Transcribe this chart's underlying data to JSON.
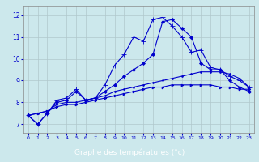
{
  "xlabel": "Graphe des températures (°c)",
  "bg_color": "#cce8ec",
  "grid_color": "#b0c8cc",
  "line_color": "#0000cc",
  "axis_label_bg": "#2255aa",
  "xlim_min": -0.5,
  "xlim_max": 23.5,
  "ylim_min": 6.6,
  "ylim_max": 12.4,
  "yticks": [
    7,
    8,
    9,
    10,
    11,
    12
  ],
  "xticks": [
    0,
    1,
    2,
    3,
    4,
    5,
    6,
    7,
    8,
    9,
    10,
    11,
    12,
    13,
    14,
    15,
    16,
    17,
    18,
    19,
    20,
    21,
    22,
    23
  ],
  "series": [
    {
      "y": [
        7.4,
        7.0,
        7.5,
        8.1,
        8.2,
        8.6,
        8.1,
        8.2,
        8.8,
        9.7,
        10.2,
        11.0,
        10.8,
        11.8,
        11.9,
        11.5,
        11.0,
        10.3,
        10.4,
        9.6,
        9.5,
        9.2,
        9.0,
        8.7
      ],
      "marker": "+",
      "ms": 4,
      "lw": 0.8
    },
    {
      "y": [
        7.4,
        7.0,
        7.5,
        8.0,
        8.1,
        8.5,
        8.1,
        8.2,
        8.5,
        8.8,
        9.2,
        9.5,
        9.8,
        10.2,
        11.7,
        11.8,
        11.4,
        11.0,
        9.8,
        9.5,
        9.5,
        9.0,
        8.7,
        8.5
      ],
      "marker": "D",
      "ms": 2,
      "lw": 0.8
    },
    {
      "y": [
        7.4,
        7.5,
        7.6,
        7.9,
        8.0,
        8.0,
        8.1,
        8.2,
        8.3,
        8.5,
        8.6,
        8.7,
        8.8,
        8.9,
        9.0,
        9.1,
        9.2,
        9.3,
        9.4,
        9.4,
        9.4,
        9.3,
        9.1,
        8.7
      ],
      "marker": ".",
      "ms": 2.5,
      "lw": 0.8
    },
    {
      "y": [
        7.4,
        7.5,
        7.6,
        7.8,
        7.9,
        7.9,
        8.0,
        8.1,
        8.2,
        8.3,
        8.4,
        8.5,
        8.6,
        8.7,
        8.7,
        8.8,
        8.8,
        8.8,
        8.8,
        8.8,
        8.7,
        8.7,
        8.6,
        8.6
      ],
      "marker": ">",
      "ms": 2,
      "lw": 0.8
    }
  ]
}
